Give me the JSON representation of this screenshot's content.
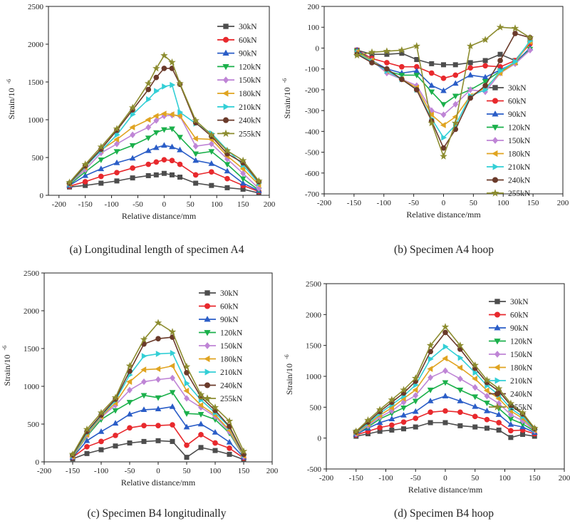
{
  "colors": {
    "30kN": "#4d4d4d",
    "60kN": "#e8292d",
    "90kN": "#2a5dc7",
    "120kN": "#1bb04b",
    "150kN": "#bf85d6",
    "180kN": "#e0a421",
    "210kN": "#33cfd6",
    "240kN": "#6a3a2a",
    "255kN": "#8c8c2f"
  },
  "markers": {
    "30kN": "square",
    "60kN": "circle",
    "90kN": "triangle-up",
    "120kN": "triangle-down",
    "150kN": "diamond",
    "180kN": "triangle-left",
    "210kN": "triangle-right",
    "240kN": "circle",
    "255kN": "star"
  },
  "chart_data": [
    {
      "type": "line",
      "caption": "(a) Longitudinal length of specimen A4",
      "xlabel": "Relative distance/mm",
      "ylabel": "Strain/10",
      "ylabel_sup": "-6",
      "xlim": [
        -220,
        200
      ],
      "ylim": [
        0,
        2500
      ],
      "xticks": [
        -200,
        -150,
        -100,
        -50,
        0,
        50,
        100,
        150,
        200
      ],
      "xtick_labels": [
        "-200",
        "-150",
        "-100",
        "-50",
        "0",
        "50",
        "100",
        "150",
        "200"
      ],
      "yticks": [
        0,
        500,
        1000,
        1500,
        2000,
        2500
      ],
      "legend_position": "top-right",
      "x": [
        -180,
        -150,
        -120,
        -90,
        -60,
        -30,
        -15,
        0,
        15,
        30,
        60,
        90,
        120,
        150,
        180
      ],
      "series": [
        {
          "name": "30kN",
          "values": [
            110,
            130,
            160,
            190,
            230,
            260,
            270,
            290,
            270,
            240,
            160,
            130,
            100,
            80,
            30
          ]
        },
        {
          "name": "60kN",
          "values": [
            120,
            180,
            250,
            300,
            360,
            410,
            440,
            470,
            460,
            410,
            270,
            310,
            220,
            130,
            50
          ]
        },
        {
          "name": "90kN",
          "values": [
            130,
            260,
            350,
            430,
            490,
            590,
            630,
            660,
            640,
            600,
            460,
            420,
            320,
            160,
            60
          ]
        },
        {
          "name": "120kN",
          "values": [
            140,
            310,
            470,
            580,
            660,
            760,
            830,
            870,
            880,
            770,
            550,
            580,
            410,
            220,
            70
          ]
        },
        {
          "name": "150kN",
          "values": [
            150,
            340,
            560,
            680,
            800,
            900,
            990,
            1050,
            1060,
            1050,
            650,
            680,
            480,
            290,
            90
          ]
        },
        {
          "name": "180kN",
          "values": [
            150,
            370,
            600,
            740,
            900,
            1000,
            1050,
            1080,
            1070,
            1050,
            750,
            740,
            520,
            350,
            140
          ]
        },
        {
          "name": "210kN",
          "values": [
            150,
            380,
            590,
            800,
            1070,
            1270,
            1380,
            1440,
            1460,
            1100,
            950,
            820,
            600,
            400,
            160
          ]
        },
        {
          "name": "240kN",
          "values": [
            160,
            390,
            610,
            860,
            1130,
            1400,
            1560,
            1680,
            1680,
            1470,
            960,
            780,
            550,
            430,
            180
          ]
        },
        {
          "name": "255kN",
          "values": [
            170,
            410,
            640,
            880,
            1160,
            1480,
            1680,
            1850,
            1760,
            1480,
            990,
            800,
            590,
            460,
            190
          ]
        }
      ]
    },
    {
      "type": "line",
      "caption": "(b) Specimen A4 hoop",
      "xlabel": "Relative distance/mm",
      "ylabel": "Strain/10",
      "ylabel_sup": "-6",
      "xlim": [
        -200,
        200
      ],
      "ylim": [
        -700,
        200
      ],
      "xticks": [
        -200,
        -150,
        -100,
        -50,
        0,
        50,
        100,
        150,
        200
      ],
      "xtick_labels": [
        "-200",
        "-150",
        "-100",
        "-50",
        "0",
        "50",
        "100",
        "150",
        "200"
      ],
      "yticks": [
        -700,
        -600,
        -500,
        -400,
        -300,
        -200,
        -100,
        0,
        100,
        200
      ],
      "legend_position": "bottom-right",
      "x": [
        -145,
        -120,
        -95,
        -70,
        -45,
        -20,
        0,
        20,
        45,
        70,
        95,
        120,
        145
      ],
      "series": [
        {
          "name": "30kN",
          "values": [
            -10,
            -30,
            -30,
            -25,
            -55,
            -75,
            -80,
            -80,
            -70,
            -60,
            -30,
            -60,
            30
          ]
        },
        {
          "name": "60kN",
          "values": [
            -10,
            -50,
            -70,
            -90,
            -90,
            -120,
            -145,
            -130,
            -95,
            -85,
            -90,
            -60,
            20
          ]
        },
        {
          "name": "90kN",
          "values": [
            -10,
            -60,
            -100,
            -120,
            -110,
            -180,
            -205,
            -170,
            -130,
            -140,
            -105,
            -70,
            0
          ]
        },
        {
          "name": "120kN",
          "values": [
            -15,
            -60,
            -110,
            -130,
            -130,
            -210,
            -270,
            -230,
            -200,
            -160,
            -110,
            -75,
            -5
          ]
        },
        {
          "name": "150kN",
          "values": [
            -20,
            -60,
            -120,
            -150,
            -180,
            -300,
            -320,
            -270,
            -200,
            -210,
            -120,
            -75,
            -10
          ]
        },
        {
          "name": "180kN",
          "values": [
            -20,
            -60,
            -110,
            -150,
            -190,
            -320,
            -370,
            -330,
            -230,
            -190,
            -120,
            -70,
            30
          ]
        },
        {
          "name": "210kN",
          "values": [
            -25,
            -65,
            -110,
            -150,
            -200,
            -340,
            -430,
            -370,
            -230,
            -200,
            -110,
            -65,
            35
          ]
        },
        {
          "name": "240kN",
          "values": [
            -30,
            -70,
            -100,
            -150,
            -200,
            -350,
            -480,
            -390,
            -240,
            -180,
            -60,
            70,
            50
          ]
        },
        {
          "name": "255kN",
          "values": [
            -35,
            -20,
            -15,
            -10,
            10,
            -360,
            -520,
            -360,
            10,
            40,
            100,
            95,
            50
          ]
        }
      ]
    },
    {
      "type": "line",
      "caption": "(c) Specimen B4 longitudinally",
      "xlabel": "Relative distance/mm",
      "ylabel": "Strain/10",
      "ylabel_sup": "-6",
      "xlim": [
        -200,
        200
      ],
      "ylim": [
        0,
        2500
      ],
      "xticks": [
        -200,
        -150,
        -100,
        -50,
        0,
        50,
        100,
        150,
        200
      ],
      "xtick_labels": [
        "-200",
        "-150",
        "-100",
        "-50",
        "0",
        "50",
        "100",
        "150",
        "200"
      ],
      "yticks": [
        0,
        500,
        1000,
        1500,
        2000,
        2500
      ],
      "legend_position": "top-right",
      "x": [
        -150,
        -125,
        -100,
        -75,
        -50,
        -25,
        0,
        25,
        50,
        75,
        100,
        125,
        150
      ],
      "series": [
        {
          "name": "30kN",
          "values": [
            40,
            110,
            160,
            210,
            250,
            270,
            280,
            270,
            60,
            190,
            150,
            100,
            30
          ]
        },
        {
          "name": "60kN",
          "values": [
            60,
            200,
            270,
            350,
            450,
            480,
            480,
            490,
            220,
            360,
            250,
            180,
            50
          ]
        },
        {
          "name": "90kN",
          "values": [
            60,
            280,
            400,
            510,
            630,
            690,
            700,
            730,
            460,
            500,
            390,
            260,
            60
          ]
        },
        {
          "name": "120kN",
          "values": [
            70,
            340,
            560,
            680,
            790,
            880,
            850,
            920,
            640,
            630,
            560,
            380,
            70
          ]
        },
        {
          "name": "150kN",
          "values": [
            70,
            350,
            590,
            750,
            950,
            1060,
            1090,
            1110,
            840,
            720,
            600,
            400,
            70
          ]
        },
        {
          "name": "180kN",
          "values": [
            70,
            360,
            600,
            780,
            1060,
            1220,
            1230,
            1270,
            940,
            750,
            620,
            420,
            80
          ]
        },
        {
          "name": "210kN",
          "values": [
            80,
            380,
            610,
            810,
            1150,
            1400,
            1430,
            1440,
            1040,
            820,
            650,
            460,
            90
          ]
        },
        {
          "name": "240kN",
          "values": [
            90,
            400,
            620,
            830,
            1200,
            1560,
            1630,
            1650,
            1180,
            860,
            680,
            470,
            100
          ]
        },
        {
          "name": "255kN",
          "values": [
            100,
            430,
            650,
            850,
            1270,
            1620,
            1840,
            1720,
            1260,
            890,
            720,
            540,
            140
          ]
        }
      ]
    },
    {
      "type": "line",
      "caption": "(d) Specimen B4 hoop",
      "xlabel": "Relative distance/mm",
      "ylabel": "Strain/10",
      "ylabel_sup": "-6",
      "xlim": [
        -200,
        200
      ],
      "ylim": [
        -500,
        2500
      ],
      "xticks": [
        -200,
        -150,
        -100,
        -50,
        0,
        50,
        100,
        150,
        200
      ],
      "xtick_labels": [
        "-200",
        "-150",
        "-100",
        "-50",
        "0",
        "50",
        "100",
        "150",
        "200"
      ],
      "yticks": [
        -500,
        0,
        500,
        1000,
        1500,
        2000,
        2500
      ],
      "legend_position": "top-right",
      "x": [
        -150,
        -130,
        -110,
        -90,
        -70,
        -50,
        -25,
        0,
        25,
        50,
        70,
        90,
        110,
        130,
        150
      ],
      "series": [
        {
          "name": "30kN",
          "values": [
            30,
            70,
            110,
            130,
            150,
            180,
            250,
            250,
            200,
            180,
            160,
            130,
            10,
            60,
            30
          ]
        },
        {
          "name": "60kN",
          "values": [
            50,
            110,
            170,
            210,
            260,
            320,
            420,
            440,
            420,
            350,
            300,
            250,
            120,
            130,
            70
          ]
        },
        {
          "name": "90kN",
          "values": [
            60,
            160,
            250,
            310,
            370,
            430,
            600,
            680,
            600,
            510,
            440,
            380,
            220,
            180,
            90
          ]
        },
        {
          "name": "120kN",
          "values": [
            70,
            180,
            310,
            400,
            490,
            600,
            780,
            900,
            780,
            670,
            570,
            480,
            310,
            230,
            110
          ]
        },
        {
          "name": "150kN",
          "values": [
            70,
            200,
            340,
            440,
            580,
            690,
            980,
            1090,
            960,
            820,
            680,
            560,
            380,
            280,
            120
          ]
        },
        {
          "name": "180kN",
          "values": [
            80,
            220,
            370,
            490,
            640,
            780,
            1120,
            1290,
            1140,
            960,
            770,
            640,
            440,
            320,
            130
          ]
        },
        {
          "name": "210kN",
          "values": [
            90,
            240,
            400,
            540,
            680,
            860,
            1280,
            1480,
            1300,
            1060,
            850,
            700,
            480,
            350,
            140
          ]
        },
        {
          "name": "240kN",
          "values": [
            100,
            260,
            430,
            580,
            730,
            920,
            1400,
            1710,
            1440,
            1130,
            900,
            760,
            530,
            390,
            150
          ]
        },
        {
          "name": "255kN",
          "values": [
            110,
            290,
            460,
            620,
            780,
            970,
            1500,
            1800,
            1500,
            1180,
            940,
            800,
            560,
            410,
            160
          ]
        }
      ]
    }
  ]
}
